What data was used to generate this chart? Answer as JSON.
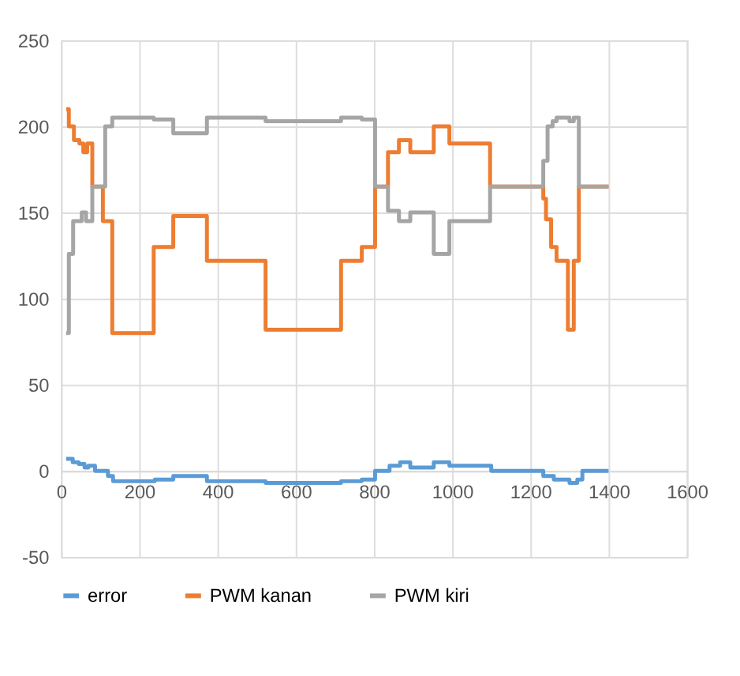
{
  "chart_data": {
    "type": "step",
    "xlim": [
      0,
      1600
    ],
    "xticks": [
      0,
      200,
      400,
      600,
      800,
      1000,
      1200,
      1400,
      1600
    ],
    "ylim": [
      -50,
      250
    ],
    "yticks": [
      -50,
      0,
      50,
      100,
      150,
      200,
      250
    ],
    "grid": true,
    "legend": "bottom",
    "line_style": "solid",
    "marker": "none",
    "series": [
      {
        "name": "error",
        "color": "#5b9bd5",
        "x": [
          13,
          30,
          45,
          60,
          70,
          87,
          107,
          120,
          133,
          240,
          287,
          373,
          523,
          716,
          769,
          803,
          840,
          867,
          893,
          953,
          993,
          1100,
          1233,
          1260,
          1300,
          1320,
          1333,
          1400
        ],
        "values": [
          7,
          5,
          4,
          2,
          3,
          0,
          0,
          -3,
          -6,
          -5,
          -3,
          -6,
          -7,
          -6,
          -5,
          0,
          3,
          5,
          2,
          5,
          3,
          0,
          -3,
          -5,
          -7,
          -5,
          0,
          0
        ]
      },
      {
        "name": "PWM kanan",
        "color": "#ed7d31",
        "x": [
          13,
          20,
          33,
          47,
          57,
          67,
          80,
          107,
          131,
          237,
          287,
          373,
          523,
          716,
          769,
          803,
          836,
          864,
          893,
          953,
          993,
          1097,
          1233,
          1240,
          1253,
          1267,
          1296,
          1311,
          1324,
          1400
        ],
        "values": [
          210,
          200,
          192,
          190,
          185,
          190,
          165,
          145,
          80,
          130,
          148,
          122,
          82,
          122,
          130,
          165,
          185,
          192,
          185,
          200,
          190,
          165,
          158,
          146,
          130,
          122,
          82,
          122,
          165,
          165
        ]
      },
      {
        "name": "PWM kiri",
        "color": "#a5a5a5",
        "x": [
          13,
          20,
          31,
          53,
          64,
          80,
          113,
          131,
          237,
          287,
          373,
          523,
          716,
          769,
          803,
          836,
          864,
          893,
          953,
          993,
          1097,
          1233,
          1244,
          1257,
          1267,
          1300,
          1311,
          1324,
          1400
        ],
        "values": [
          80,
          126,
          145,
          150,
          145,
          165,
          200,
          205,
          204,
          196,
          205,
          203,
          205,
          204,
          165,
          151,
          145,
          150,
          126,
          145,
          165,
          180,
          200,
          203,
          205,
          203,
          205,
          165,
          165
        ]
      }
    ]
  }
}
